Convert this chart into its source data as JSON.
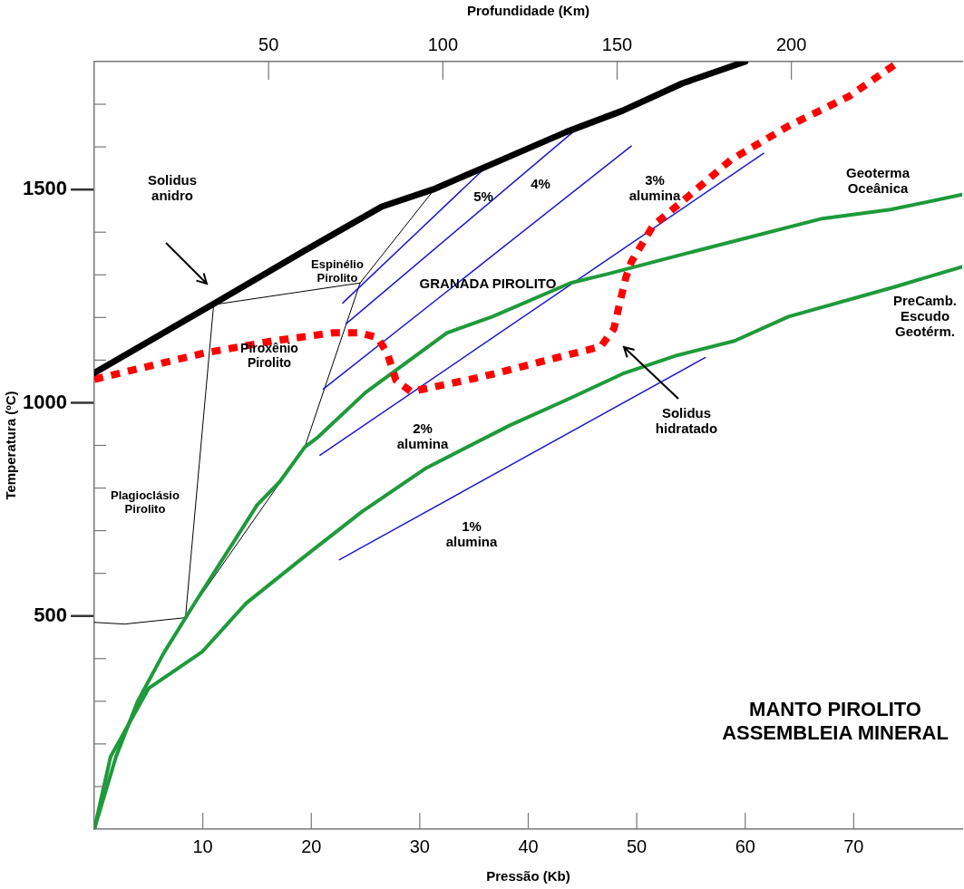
{
  "chart_data": {
    "type": "line",
    "xlabel": "Pressão (Kb)",
    "ylabel": "Temperatura (ºC)",
    "x2label": "Profundidade (Km)",
    "xlim": [
      0,
      80
    ],
    "xticks": [
      10,
      20,
      30,
      40,
      50,
      60,
      70
    ],
    "x2lim": [
      0,
      249
    ],
    "x2ticks": [
      50,
      100,
      150,
      200
    ],
    "ylim": [
      0,
      1800
    ],
    "yticks": [
      {
        "value": 100,
        "label": null
      },
      {
        "value": 200,
        "label": null
      },
      {
        "value": 300,
        "label": null
      },
      {
        "value": 400,
        "label": null
      },
      500,
      {
        "value": 600,
        "label": null
      },
      {
        "value": 700,
        "label": null
      },
      {
        "value": 800,
        "label": null
      },
      {
        "value": 900,
        "label": null
      },
      1000,
      {
        "value": 1100,
        "label": null
      },
      {
        "value": 1200,
        "label": null
      },
      {
        "value": 1300,
        "label": null
      },
      {
        "value": 1400,
        "label": null
      },
      1500,
      {
        "value": 1600,
        "label": null
      },
      {
        "value": 1700,
        "label": null
      }
    ],
    "legend": false,
    "marker": "none",
    "series": [
      {
        "color": "#000000",
        "x": [
          0,
          11.4,
          19.4,
          26.5,
          31.2,
          36.4,
          43.5,
          48.7,
          54.2,
          60
        ],
        "values": [
          1070,
          1238,
          1357,
          1460,
          1500,
          1557,
          1635,
          1685,
          1749,
          1800
        ]
      },
      {
        "color": "#ff0000",
        "line_style": "dashed",
        "x": [
          0,
          10.2,
          16.5,
          22,
          24.5,
          26.1,
          27,
          27.8,
          29.2,
          35.6,
          46.7,
          47.9,
          48.4,
          49,
          49.5,
          51.5,
          54.8,
          58.7,
          64,
          69.6,
          74.2
        ],
        "values": [
          1055,
          1117,
          1145,
          1164,
          1164,
          1153,
          1117,
          1053,
          1026,
          1060,
          1132,
          1174,
          1230,
          1294,
          1330,
          1415,
          1485,
          1570,
          1649,
          1719,
          1800
        ]
      },
      {
        "color": "#1e9a3a",
        "x": [
          0,
          2,
          4,
          6.4,
          9.4,
          15,
          17.1,
          19.4,
          20.6,
          25,
          32.5,
          36.7,
          43.9,
          47.3,
          55.6,
          67.1,
          73.4,
          80
        ],
        "values": [
          0,
          170,
          300,
          413,
          536,
          760,
          815,
          896,
          919,
          1024,
          1164,
          1202,
          1281,
          1302,
          1357,
          1432,
          1453,
          1488
        ]
      },
      {
        "color": "#1e9a3a",
        "x": [
          0,
          1.5,
          5,
          9.9,
          14,
          19.4,
          24.7,
          30.6,
          38.3,
          43.9,
          48.7,
          53.7,
          59,
          64,
          73.8,
          80
        ],
        "values": [
          0,
          170,
          330,
          415,
          530,
          640,
          745,
          847,
          947,
          1011,
          1068,
          1111,
          1145,
          1202,
          1272,
          1319
        ]
      },
      {
        "color": "#1a1acd",
        "x": [
          22.6,
          56.3
        ],
        "values": [
          632,
          1106
        ]
      },
      {
        "color": "#1a1acd",
        "x": [
          20.8,
          61.7
        ],
        "values": [
          877,
          1585
        ]
      },
      {
        "color": "#1a1acd",
        "x": [
          21.1,
          49.5
        ],
        "values": [
          1032,
          1602
        ]
      },
      {
        "color": "#1a1acd",
        "x": [
          23.2,
          44.5
        ],
        "values": [
          1185,
          1643
        ]
      },
      {
        "color": "#1a1acd",
        "x": [
          22.9,
          36.4
        ],
        "values": [
          1234,
          1560
        ]
      },
      {
        "color": "#000000",
        "x": [
          0,
          2.8,
          8.4,
          19.4,
          24.5,
          31.2
        ],
        "values": [
          485,
          481,
          496,
          896,
          1281,
          1496
        ]
      },
      {
        "color": "#000000",
        "x": [
          8.4,
          11,
          24.5
        ],
        "values": [
          496,
          1230,
          1281
        ]
      }
    ],
    "annotations": [
      "Solidus\nanidro",
      "Espinélio\nPirolito",
      "Piroxênio\nPirolito",
      "Plagioclásio\nPirolito",
      "GRANADA PIROLITO",
      "5%",
      "4%",
      "3%\nalumina",
      "2%\nalumina",
      "1%\nalumina",
      "Geoterma\nOceânica",
      "PreCamb.\nEscudo\nGeotérm.",
      "Solidus\nhidratado",
      "MANTO PIROLITO\nASSEMBLEIA MINERAL"
    ]
  }
}
